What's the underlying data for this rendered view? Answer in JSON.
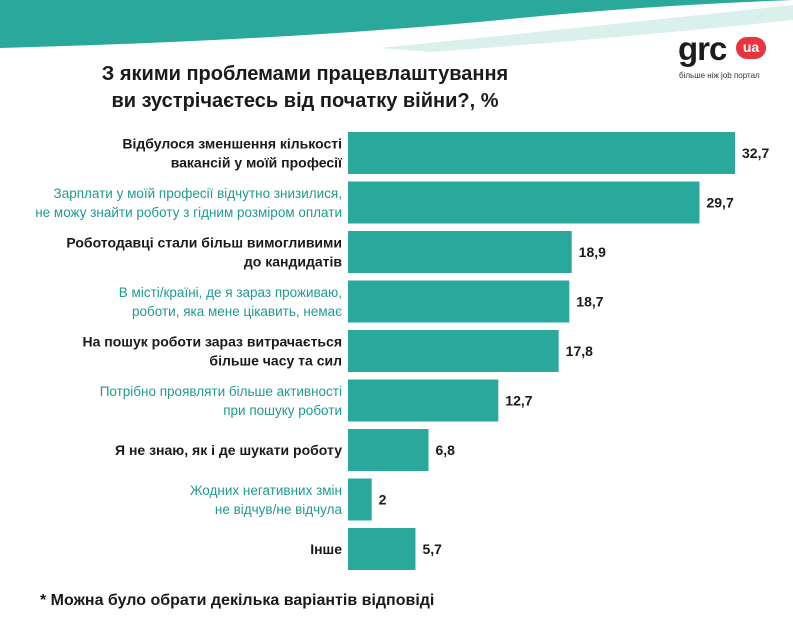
{
  "title": {
    "line1": "З якими проблемами працевлаштування",
    "line2": "ви зустрічаєтесь від початку війни?, %"
  },
  "logo": {
    "brand": "grc",
    "badge": "ua",
    "tagline": "більше ніж job портал"
  },
  "footnote": "* Можна було обрати декілька варіантів відповіді",
  "colors": {
    "bar": "#2ba89c",
    "label_dark": "#1a1a1a",
    "label_teal": "#1f9a8f",
    "banner": "#2ba89c",
    "banner_light": "#bfe6e1",
    "logo_badge": "#e8343c"
  },
  "chart_data": {
    "type": "bar",
    "orientation": "horizontal",
    "unit": "%",
    "categories": [
      [
        "Відбулося зменшення кількості",
        "вакансій у моїй професії"
      ],
      [
        "Зарплати у моїй професії відчутно знизилися,",
        "не можу знайти роботу з гідним розміром оплати"
      ],
      [
        "Роботодавці стали більш вимогливими",
        "до кандидатів"
      ],
      [
        "В місті/країні, де я зараз проживаю,",
        "роботи, яка мене цікавить, немає"
      ],
      [
        "На пошук роботи зараз витрачається",
        "більше часу та сил"
      ],
      [
        "Потрібно проявляти більше активності",
        "при пошуку роботи"
      ],
      [
        "Я не знаю, як і де шукати роботу"
      ],
      [
        "Жодних негативних змін",
        "не відчув/не відчула"
      ],
      [
        "Інше"
      ]
    ],
    "label_styles": [
      "dark",
      "teal",
      "dark",
      "teal",
      "dark",
      "teal",
      "dark",
      "teal",
      "dark"
    ],
    "values": [
      32.7,
      29.7,
      18.9,
      18.7,
      17.8,
      12.7,
      6.8,
      2,
      5.7
    ],
    "value_labels": [
      "32,7",
      "29,7",
      "18,9",
      "18,7",
      "17,8",
      "12,7",
      "6,8",
      "2",
      "5,7"
    ],
    "xlim": [
      0,
      32.7
    ],
    "grid": false,
    "legend": "none"
  }
}
